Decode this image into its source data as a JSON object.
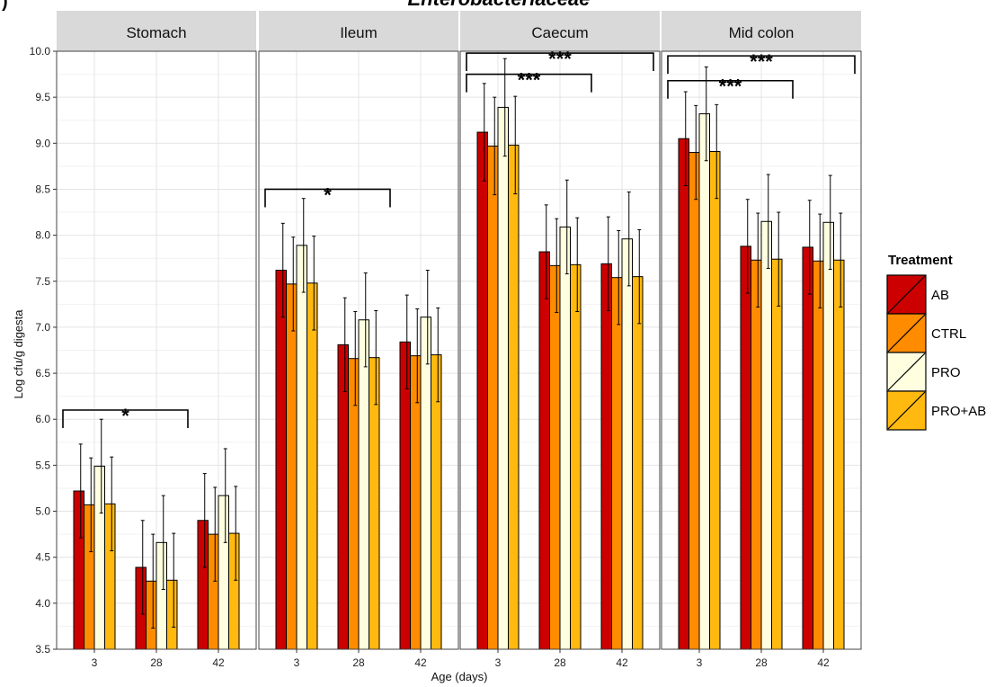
{
  "chart_data": {
    "type": "bar",
    "title": "Enterobacteriaceae",
    "panel_letter": ")",
    "xlabel": "Age (days)",
    "ylabel": "Log cfu/g digesta",
    "ylim": [
      3.5,
      10.0
    ],
    "yticks": [
      "3.5",
      "4.0",
      "4.5",
      "5.0",
      "5.5",
      "6.0",
      "6.5",
      "7.0",
      "7.5",
      "8.0",
      "8.5",
      "9.0",
      "9.5",
      "10.0"
    ],
    "categories": [
      "3",
      "28",
      "42"
    ],
    "grid": true,
    "legend": {
      "title": "Treatment",
      "placement": "right",
      "entries": [
        {
          "name": "AB",
          "color": "#cc0000"
        },
        {
          "name": "CTRL",
          "color": "#ff8c00"
        },
        {
          "name": "PRO",
          "color": "#ffffe0"
        },
        {
          "name": "PRO+AB",
          "color": "#ffb90f"
        }
      ]
    },
    "panels": [
      {
        "name": "Stomach",
        "series": [
          {
            "name": "AB",
            "values": [
              5.22,
              4.39,
              4.9
            ],
            "errors": [
              0.51,
              0.51,
              0.51
            ]
          },
          {
            "name": "CTRL",
            "values": [
              5.07,
              4.24,
              4.75
            ],
            "errors": [
              0.51,
              0.51,
              0.51
            ]
          },
          {
            "name": "PRO",
            "values": [
              5.49,
              4.66,
              5.17
            ],
            "errors": [
              0.51,
              0.51,
              0.51
            ]
          },
          {
            "name": "PRO+AB",
            "values": [
              5.08,
              4.25,
              4.76
            ],
            "errors": [
              0.51,
              0.51,
              0.51
            ]
          }
        ],
        "annotations": [
          {
            "label": "*",
            "from": "3",
            "to": "28",
            "y": 6.1
          }
        ]
      },
      {
        "name": "Ileum",
        "series": [
          {
            "name": "AB",
            "values": [
              7.62,
              6.81,
              6.84
            ],
            "errors": [
              0.51,
              0.51,
              0.51
            ]
          },
          {
            "name": "CTRL",
            "values": [
              7.47,
              6.66,
              6.69
            ],
            "errors": [
              0.51,
              0.51,
              0.51
            ]
          },
          {
            "name": "PRO",
            "values": [
              7.89,
              7.08,
              7.11
            ],
            "errors": [
              0.51,
              0.51,
              0.51
            ]
          },
          {
            "name": "PRO+AB",
            "values": [
              7.48,
              6.67,
              6.7
            ],
            "errors": [
              0.51,
              0.51,
              0.51
            ]
          }
        ],
        "annotations": [
          {
            "label": "*",
            "from": "3",
            "to": "28",
            "y": 8.5
          }
        ]
      },
      {
        "name": "Caecum",
        "series": [
          {
            "name": "AB",
            "values": [
              9.12,
              7.82,
              7.69
            ],
            "errors": [
              0.53,
              0.51,
              0.51
            ]
          },
          {
            "name": "CTRL",
            "values": [
              8.97,
              7.67,
              7.54
            ],
            "errors": [
              0.53,
              0.51,
              0.51
            ]
          },
          {
            "name": "PRO",
            "values": [
              9.39,
              8.09,
              7.96
            ],
            "errors": [
              0.53,
              0.51,
              0.51
            ]
          },
          {
            "name": "PRO+AB",
            "values": [
              8.98,
              7.68,
              7.55
            ],
            "errors": [
              0.53,
              0.51,
              0.51
            ]
          }
        ],
        "annotations": [
          {
            "label": "***",
            "from": "3",
            "to": "42",
            "y": 9.98
          },
          {
            "label": "***",
            "from": "3",
            "to": "28",
            "y": 9.75
          }
        ]
      },
      {
        "name": "Mid colon",
        "series": [
          {
            "name": "AB",
            "values": [
              9.05,
              7.88,
              7.87
            ],
            "errors": [
              0.51,
              0.51,
              0.51
            ]
          },
          {
            "name": "CTRL",
            "values": [
              8.9,
              7.73,
              7.72
            ],
            "errors": [
              0.51,
              0.51,
              0.51
            ]
          },
          {
            "name": "PRO",
            "values": [
              9.32,
              8.15,
              8.14
            ],
            "errors": [
              0.51,
              0.51,
              0.51
            ]
          },
          {
            "name": "PRO+AB",
            "values": [
              8.91,
              7.74,
              7.73
            ],
            "errors": [
              0.51,
              0.51,
              0.51
            ]
          }
        ],
        "annotations": [
          {
            "label": "***",
            "from": "3",
            "to": "42",
            "y": 9.95
          },
          {
            "label": "***",
            "from": "3",
            "to": "28",
            "y": 9.68
          }
        ]
      }
    ]
  }
}
